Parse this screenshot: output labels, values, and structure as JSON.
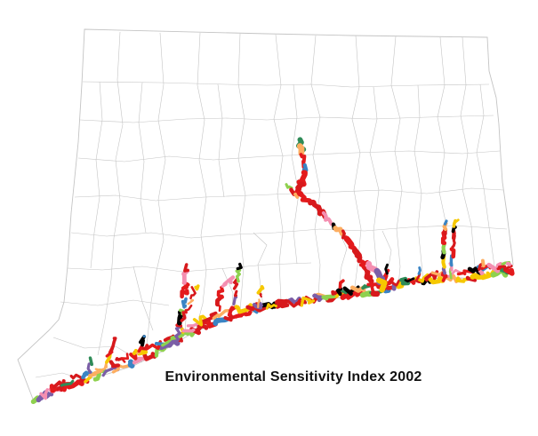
{
  "map": {
    "title": "Environmental Sensitivity Index 2002",
    "region": "connecticut",
    "background_color": "#ffffff",
    "boundary_color": "#c4c4c4",
    "shoreline_colors": [
      "#d7191c",
      "#e31a1c",
      "#fdae61",
      "#f6c800",
      "#f48fb1",
      "#8fd14f",
      "#2e8b57",
      "#3a84c4",
      "#7b5ea7",
      "#000000"
    ]
  }
}
